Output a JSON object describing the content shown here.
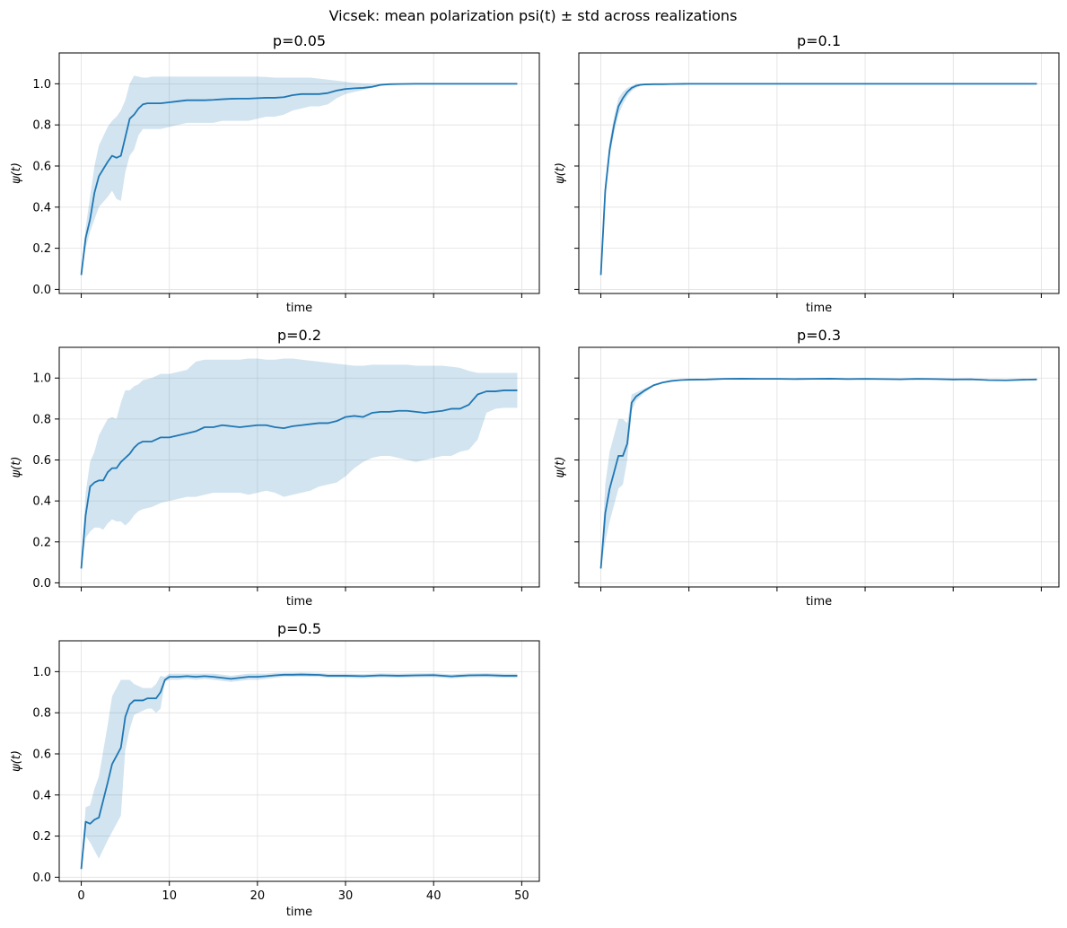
{
  "figure_title": "Vicsek: mean polarization psi(t) ± std across realizations",
  "colors": {
    "line": "#1f77b4",
    "band": "#1f77b4"
  },
  "chart_data": [
    {
      "type": "line",
      "title": "p=0.05",
      "xlabel": "time",
      "ylabel": "ψ(t)",
      "xlim": [
        -2.5,
        52
      ],
      "ylim": [
        -0.02,
        1.15
      ],
      "xticks": [
        0,
        10,
        20,
        30,
        40,
        50
      ],
      "yticks": [
        0.0,
        0.2,
        0.4,
        0.6,
        0.8,
        1.0
      ],
      "ytick_labels": [
        "0.0",
        "0.2",
        "0.4",
        "0.6",
        "0.8",
        "1.0"
      ],
      "show_xtick_labels": false,
      "show_ytick_labels": true,
      "x": [
        0,
        0.5,
        1,
        1.5,
        2,
        3,
        3.5,
        4,
        4.5,
        5,
        5.5,
        6,
        6.5,
        7,
        7.5,
        8,
        9,
        10,
        11,
        12,
        13,
        14,
        15,
        16,
        17,
        18,
        19,
        20,
        21,
        22,
        23,
        24,
        25,
        26,
        27,
        28,
        29,
        30,
        31,
        32,
        33,
        34,
        35,
        36,
        38,
        40,
        42,
        45,
        49.5
      ],
      "mean": [
        0.07,
        0.25,
        0.34,
        0.47,
        0.55,
        0.62,
        0.65,
        0.64,
        0.65,
        0.74,
        0.83,
        0.85,
        0.88,
        0.9,
        0.905,
        0.905,
        0.905,
        0.91,
        0.915,
        0.92,
        0.92,
        0.92,
        0.922,
        0.925,
        0.927,
        0.928,
        0.928,
        0.93,
        0.932,
        0.932,
        0.935,
        0.945,
        0.95,
        0.95,
        0.95,
        0.955,
        0.967,
        0.975,
        0.978,
        0.98,
        0.985,
        0.995,
        0.998,
        0.999,
        1.0,
        1.0,
        1.0,
        1.0,
        1.0
      ],
      "lower": [
        0.06,
        0.2,
        0.28,
        0.34,
        0.4,
        0.45,
        0.48,
        0.44,
        0.43,
        0.57,
        0.65,
        0.68,
        0.75,
        0.78,
        0.78,
        0.78,
        0.78,
        0.79,
        0.8,
        0.81,
        0.81,
        0.81,
        0.81,
        0.82,
        0.82,
        0.82,
        0.82,
        0.83,
        0.84,
        0.84,
        0.85,
        0.87,
        0.88,
        0.89,
        0.89,
        0.9,
        0.93,
        0.95,
        0.96,
        0.97,
        0.98,
        0.99,
        0.995,
        0.998,
        1.0,
        1.0,
        1.0,
        1.0,
        1.0
      ],
      "upper": [
        0.08,
        0.3,
        0.45,
        0.6,
        0.7,
        0.79,
        0.82,
        0.84,
        0.87,
        0.92,
        1.0,
        1.04,
        1.035,
        1.03,
        1.03,
        1.035,
        1.035,
        1.035,
        1.035,
        1.035,
        1.035,
        1.035,
        1.035,
        1.035,
        1.035,
        1.035,
        1.035,
        1.035,
        1.033,
        1.03,
        1.03,
        1.03,
        1.03,
        1.03,
        1.025,
        1.02,
        1.015,
        1.01,
        1.005,
        1.002,
        1.0,
        1.0,
        1.0,
        1.0,
        1.0,
        1.0,
        1.0,
        1.0,
        1.0
      ]
    },
    {
      "type": "line",
      "title": "p=0.1",
      "xlabel": "time",
      "ylabel": "ψ(t)",
      "xlim": [
        -2.5,
        52
      ],
      "ylim": [
        -0.02,
        1.15
      ],
      "xticks": [
        0,
        10,
        20,
        30,
        40,
        50
      ],
      "yticks": [
        0.0,
        0.2,
        0.4,
        0.6,
        0.8,
        1.0
      ],
      "ytick_labels": [
        "0.0",
        "0.2",
        "0.4",
        "0.6",
        "0.8",
        "1.0"
      ],
      "show_xtick_labels": false,
      "show_ytick_labels": false,
      "x": [
        0,
        0.5,
        1,
        1.5,
        2,
        2.5,
        3,
        3.5,
        4,
        4.5,
        5,
        6,
        7,
        8,
        10,
        15,
        20,
        30,
        40,
        49.5
      ],
      "mean": [
        0.07,
        0.48,
        0.68,
        0.8,
        0.89,
        0.93,
        0.96,
        0.98,
        0.99,
        0.995,
        0.997,
        0.998,
        0.998,
        0.999,
        1.0,
        1.0,
        1.0,
        1.0,
        1.0,
        1.0
      ],
      "lower": [
        0.06,
        0.44,
        0.64,
        0.76,
        0.85,
        0.9,
        0.94,
        0.965,
        0.98,
        0.99,
        0.995,
        0.997,
        0.998,
        0.999,
        1.0,
        1.0,
        1.0,
        1.0,
        1.0,
        1.0
      ],
      "upper": [
        0.08,
        0.52,
        0.72,
        0.84,
        0.93,
        0.96,
        0.98,
        0.99,
        1.0,
        1.0,
        1.0,
        1.0,
        1.0,
        1.0,
        1.0,
        1.0,
        1.0,
        1.0,
        1.0,
        1.0
      ]
    },
    {
      "type": "line",
      "title": "p=0.2",
      "xlabel": "time",
      "ylabel": "ψ(t)",
      "xlim": [
        -2.5,
        52
      ],
      "ylim": [
        -0.02,
        1.15
      ],
      "xticks": [
        0,
        10,
        20,
        30,
        40,
        50
      ],
      "yticks": [
        0.0,
        0.2,
        0.4,
        0.6,
        0.8,
        1.0
      ],
      "ytick_labels": [
        "0.0",
        "0.2",
        "0.4",
        "0.6",
        "0.8",
        "1.0"
      ],
      "show_xtick_labels": false,
      "show_ytick_labels": true,
      "x": [
        0,
        0.5,
        1,
        1.5,
        2,
        2.5,
        3,
        3.5,
        4,
        4.5,
        5,
        5.5,
        6,
        6.5,
        7,
        8,
        9,
        10,
        11,
        12,
        13,
        14,
        15,
        16,
        17,
        18,
        19,
        20,
        21,
        22,
        23,
        24,
        25,
        26,
        27,
        28,
        29,
        30,
        31,
        32,
        33,
        34,
        35,
        36,
        37,
        38,
        39,
        40,
        41,
        42,
        43,
        44,
        45,
        46,
        47,
        48,
        49.5
      ],
      "mean": [
        0.07,
        0.33,
        0.47,
        0.49,
        0.5,
        0.5,
        0.54,
        0.56,
        0.56,
        0.59,
        0.61,
        0.63,
        0.66,
        0.68,
        0.69,
        0.69,
        0.71,
        0.71,
        0.72,
        0.73,
        0.74,
        0.76,
        0.76,
        0.77,
        0.765,
        0.76,
        0.765,
        0.77,
        0.77,
        0.76,
        0.755,
        0.765,
        0.77,
        0.775,
        0.78,
        0.78,
        0.79,
        0.81,
        0.815,
        0.81,
        0.83,
        0.835,
        0.835,
        0.84,
        0.84,
        0.835,
        0.83,
        0.835,
        0.84,
        0.85,
        0.85,
        0.87,
        0.92,
        0.935,
        0.935,
        0.94,
        0.94
      ],
      "lower": [
        0.06,
        0.22,
        0.25,
        0.27,
        0.27,
        0.26,
        0.29,
        0.31,
        0.3,
        0.3,
        0.28,
        0.3,
        0.33,
        0.35,
        0.36,
        0.37,
        0.39,
        0.4,
        0.41,
        0.42,
        0.42,
        0.43,
        0.44,
        0.44,
        0.44,
        0.44,
        0.43,
        0.44,
        0.45,
        0.44,
        0.42,
        0.43,
        0.44,
        0.45,
        0.47,
        0.48,
        0.49,
        0.52,
        0.56,
        0.59,
        0.61,
        0.62,
        0.62,
        0.61,
        0.6,
        0.59,
        0.6,
        0.61,
        0.62,
        0.62,
        0.64,
        0.65,
        0.7,
        0.83,
        0.85,
        0.855,
        0.855
      ],
      "upper": [
        0.08,
        0.44,
        0.59,
        0.64,
        0.72,
        0.76,
        0.8,
        0.81,
        0.8,
        0.88,
        0.94,
        0.94,
        0.96,
        0.97,
        0.99,
        1.0,
        1.02,
        1.02,
        1.03,
        1.04,
        1.08,
        1.09,
        1.09,
        1.09,
        1.09,
        1.09,
        1.095,
        1.095,
        1.09,
        1.09,
        1.095,
        1.095,
        1.09,
        1.085,
        1.08,
        1.075,
        1.07,
        1.065,
        1.06,
        1.06,
        1.065,
        1.065,
        1.065,
        1.065,
        1.065,
        1.06,
        1.06,
        1.06,
        1.06,
        1.055,
        1.05,
        1.035,
        1.025,
        1.025,
        1.025,
        1.025,
        1.025
      ]
    },
    {
      "type": "line",
      "title": "p=0.3",
      "xlabel": "time",
      "ylabel": "ψ(t)",
      "xlim": [
        -2.5,
        52
      ],
      "ylim": [
        -0.02,
        1.15
      ],
      "xticks": [
        0,
        10,
        20,
        30,
        40,
        50
      ],
      "yticks": [
        0.0,
        0.2,
        0.4,
        0.6,
        0.8,
        1.0
      ],
      "ytick_labels": [
        "0.0",
        "0.2",
        "0.4",
        "0.6",
        "0.8",
        "1.0"
      ],
      "show_xtick_labels": false,
      "show_ytick_labels": false,
      "x": [
        0,
        0.5,
        1,
        1.5,
        2,
        2.5,
        3,
        3.5,
        4,
        5,
        6,
        7,
        8,
        9,
        10,
        12,
        14,
        16,
        18,
        20,
        22,
        24,
        26,
        28,
        30,
        32,
        34,
        36,
        38,
        40,
        42,
        44,
        46,
        48,
        49.5
      ],
      "mean": [
        0.07,
        0.34,
        0.46,
        0.54,
        0.62,
        0.62,
        0.68,
        0.88,
        0.91,
        0.94,
        0.965,
        0.978,
        0.986,
        0.99,
        0.992,
        0.993,
        0.996,
        0.997,
        0.996,
        0.996,
        0.995,
        0.996,
        0.997,
        0.995,
        0.996,
        0.995,
        0.994,
        0.996,
        0.995,
        0.993,
        0.994,
        0.99,
        0.989,
        0.992,
        0.993
      ],
      "lower": [
        0.06,
        0.2,
        0.3,
        0.38,
        0.46,
        0.48,
        0.6,
        0.84,
        0.89,
        0.93,
        0.96,
        0.975,
        0.983,
        0.987,
        0.99,
        0.991,
        0.994,
        0.995,
        0.994,
        0.994,
        0.993,
        0.994,
        0.995,
        0.993,
        0.994,
        0.993,
        0.992,
        0.994,
        0.993,
        0.991,
        0.992,
        0.988,
        0.987,
        0.99,
        0.991
      ],
      "upper": [
        0.08,
        0.48,
        0.64,
        0.72,
        0.8,
        0.8,
        0.78,
        0.92,
        0.93,
        0.95,
        0.97,
        0.981,
        0.989,
        0.993,
        0.994,
        0.995,
        0.998,
        0.999,
        0.998,
        0.998,
        0.997,
        0.998,
        0.999,
        0.997,
        0.998,
        0.997,
        0.996,
        0.998,
        0.997,
        0.995,
        0.996,
        0.992,
        0.991,
        0.994,
        0.995
      ]
    },
    {
      "type": "line",
      "title": "p=0.5",
      "xlabel": "time",
      "ylabel": "ψ(t)",
      "xlim": [
        -2.5,
        52
      ],
      "ylim": [
        -0.02,
        1.15
      ],
      "xticks": [
        0,
        10,
        20,
        30,
        40,
        50
      ],
      "xtick_labels": [
        "0",
        "10",
        "20",
        "30",
        "40",
        "50"
      ],
      "yticks": [
        0.0,
        0.2,
        0.4,
        0.6,
        0.8,
        1.0
      ],
      "ytick_labels": [
        "0.0",
        "0.2",
        "0.4",
        "0.6",
        "0.8",
        "1.0"
      ],
      "show_xtick_labels": true,
      "show_ytick_labels": true,
      "x": [
        0,
        0.5,
        1,
        1.5,
        2,
        3,
        3.5,
        4,
        4.5,
        5,
        5.5,
        6,
        6.5,
        7,
        7.5,
        8,
        8.5,
        9,
        9.5,
        10,
        11,
        12,
        13,
        14,
        15,
        16,
        17,
        18,
        19,
        20,
        21,
        22,
        23,
        24,
        25,
        26,
        27,
        28,
        30,
        32,
        34,
        36,
        38,
        40,
        42,
        44,
        46,
        48,
        49.5
      ],
      "mean": [
        0.04,
        0.27,
        0.26,
        0.28,
        0.29,
        0.46,
        0.55,
        0.59,
        0.63,
        0.78,
        0.84,
        0.86,
        0.86,
        0.86,
        0.87,
        0.87,
        0.87,
        0.9,
        0.96,
        0.975,
        0.975,
        0.978,
        0.975,
        0.978,
        0.975,
        0.97,
        0.965,
        0.97,
        0.975,
        0.975,
        0.978,
        0.982,
        0.985,
        0.985,
        0.986,
        0.985,
        0.984,
        0.98,
        0.98,
        0.978,
        0.982,
        0.98,
        0.982,
        0.983,
        0.977,
        0.982,
        0.983,
        0.98,
        0.98
      ],
      "lower": [
        0.03,
        0.2,
        0.17,
        0.13,
        0.09,
        0.18,
        0.22,
        0.26,
        0.3,
        0.62,
        0.72,
        0.79,
        0.8,
        0.81,
        0.82,
        0.82,
        0.8,
        0.82,
        0.95,
        0.96,
        0.96,
        0.965,
        0.96,
        0.965,
        0.96,
        0.955,
        0.95,
        0.955,
        0.96,
        0.96,
        0.965,
        0.97,
        0.975,
        0.975,
        0.976,
        0.975,
        0.974,
        0.97,
        0.97,
        0.968,
        0.972,
        0.97,
        0.972,
        0.973,
        0.967,
        0.972,
        0.973,
        0.97,
        0.97
      ],
      "upper": [
        0.05,
        0.34,
        0.35,
        0.43,
        0.49,
        0.74,
        0.88,
        0.92,
        0.96,
        0.96,
        0.96,
        0.94,
        0.93,
        0.92,
        0.92,
        0.92,
        0.94,
        0.98,
        0.975,
        0.99,
        0.99,
        0.99,
        0.99,
        0.99,
        0.99,
        0.985,
        0.98,
        0.985,
        0.99,
        0.99,
        0.99,
        0.994,
        0.995,
        0.995,
        0.996,
        0.995,
        0.994,
        0.99,
        0.99,
        0.988,
        0.992,
        0.99,
        0.992,
        0.993,
        0.987,
        0.992,
        0.993,
        0.99,
        0.99
      ]
    }
  ]
}
